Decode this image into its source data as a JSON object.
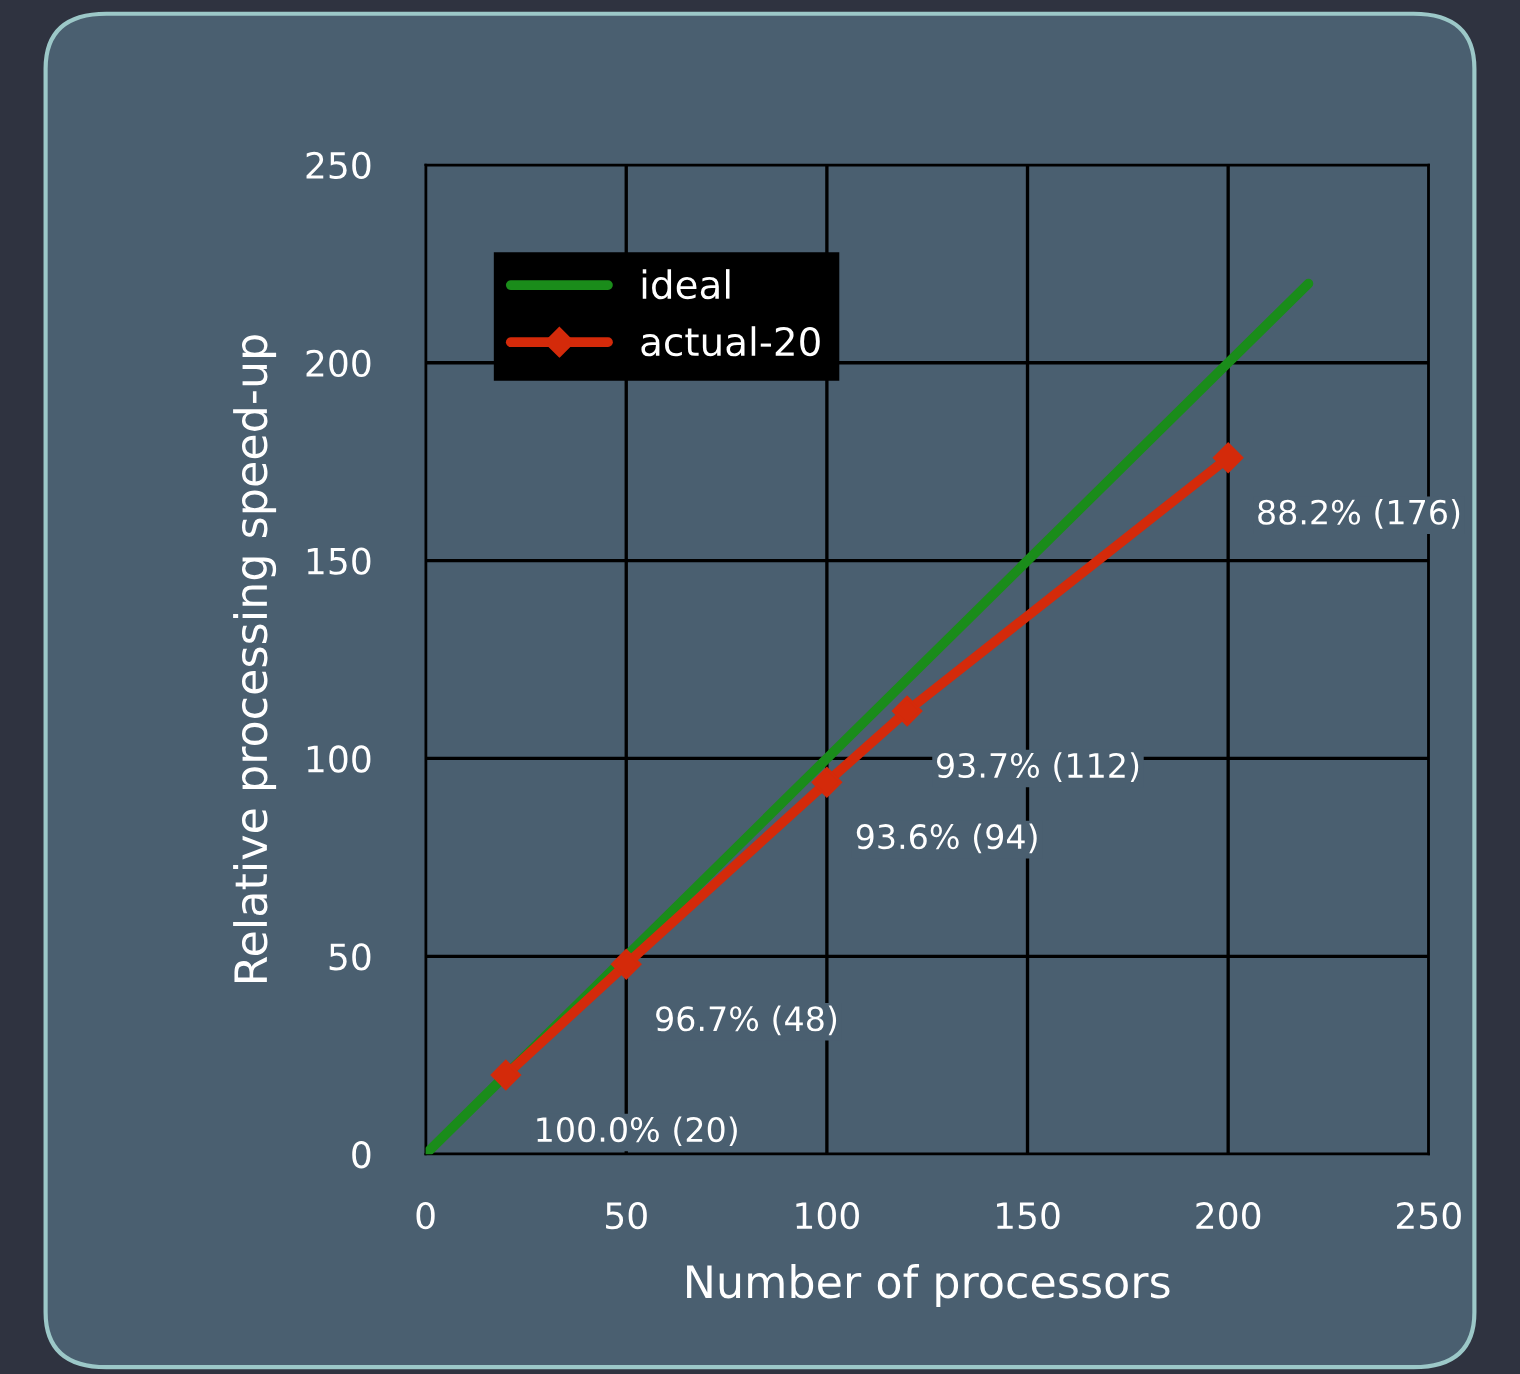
{
  "chart_data": {
    "type": "line",
    "xlabel": "Number of processors",
    "ylabel": "Relative processing speed-up",
    "series": [
      {
        "name": "ideal",
        "color": "#1a8c1a",
        "x": [
          0,
          220
        ],
        "values": [
          0,
          220
        ],
        "marker": "none"
      },
      {
        "name": "actual-20",
        "color": "#d42a0a",
        "x": [
          20,
          50,
          100,
          120,
          200
        ],
        "values": [
          20,
          48,
          94,
          112,
          176
        ],
        "marker": "diamond"
      }
    ],
    "xlim": [
      0,
      250
    ],
    "ylim": [
      0,
      250
    ],
    "xticks": [
      0,
      50,
      100,
      150,
      200,
      250
    ],
    "yticks": [
      0,
      50,
      100,
      150,
      200,
      250
    ],
    "grid": true,
    "legend": "top left",
    "line_style": "solid",
    "annotations": [
      {
        "text": "100.0% (20)",
        "x": 20,
        "y": 20
      },
      {
        "text": "96.7% (48)",
        "x": 50,
        "y": 48
      },
      {
        "text": "93.6% (94)",
        "x": 100,
        "y": 94
      },
      {
        "text": "93.7% (112)",
        "x": 120,
        "y": 112
      },
      {
        "text": "88.2% (176)",
        "x": 200,
        "y": 176
      }
    ]
  }
}
